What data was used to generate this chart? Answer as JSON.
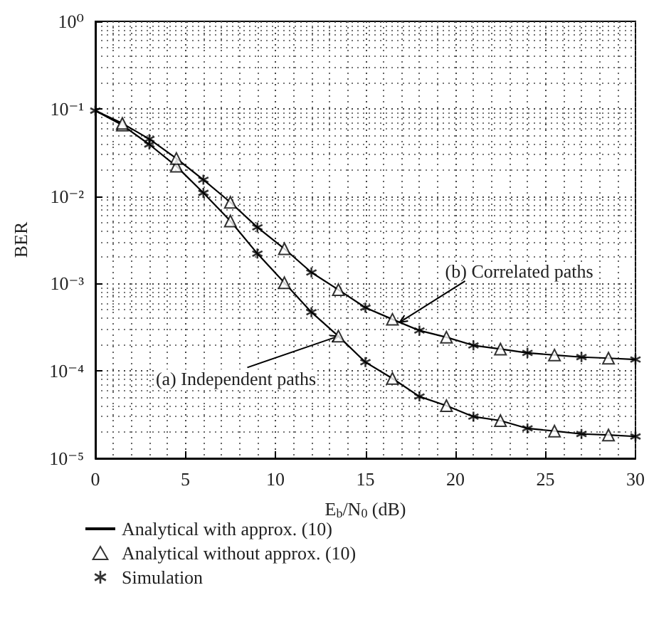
{
  "chart_data": {
    "type": "line",
    "xlabel": "E$_{b}$/N$_{0}$ (dB)",
    "ylabel": "BER",
    "log": "y",
    "grid": true,
    "legend": "bottom",
    "xlim": [
      0,
      30
    ],
    "xticks": [
      0,
      5,
      10,
      15,
      20,
      25,
      30
    ],
    "ylim": [
      1e-05,
      1
    ],
    "yticks": [
      {
        "value": 1e-05,
        "label": "10⁻⁵"
      },
      {
        "value": 0.0001,
        "label": "10⁻⁴"
      },
      {
        "value": 0.001,
        "label": "10⁻³"
      },
      {
        "value": 0.01,
        "label": "10⁻²"
      },
      {
        "value": 0.1,
        "label": "10⁻¹"
      },
      {
        "value": 1,
        "label": "10⁰"
      }
    ],
    "series": [
      {
        "name": "Analytical with approx. (10)",
        "color": "#000000",
        "marker": "none",
        "line_style": "solid",
        "x": [
          0,
          1.5,
          3,
          4.5,
          6,
          7.5,
          9,
          10.5,
          12,
          13.5,
          15,
          16.5,
          18,
          19.5,
          21,
          22.5,
          24,
          25.5,
          27,
          28.5,
          30
        ],
        "values": [
          0.095,
          0.065,
          0.039,
          0.022,
          0.0109,
          0.0052,
          0.0022,
          0.00102,
          0.00047,
          0.00025,
          0.000126,
          8.2e-05,
          5.1e-05,
          4e-05,
          3e-05,
          2.7e-05,
          2.2e-05,
          2.05e-05,
          1.9e-05,
          1.85e-05,
          1.78e-05
        ]
      },
      {
        "color": "#000000",
        "marker": "none",
        "line_style": "solid",
        "x": [
          0,
          1.5,
          3,
          4.5,
          6,
          7.5,
          9,
          10.5,
          12,
          13.5,
          15,
          16.5,
          18,
          19.5,
          21,
          22.5,
          24,
          25.5,
          27,
          28.5,
          30
        ],
        "values": [
          0.095,
          0.068,
          0.045,
          0.027,
          0.0154,
          0.0085,
          0.0044,
          0.0025,
          0.00134,
          0.00085,
          0.00053,
          0.00039,
          0.00029,
          0.000243,
          0.000196,
          0.000178,
          0.000161,
          0.000152,
          0.000144,
          0.00014,
          0.000135
        ]
      },
      {
        "name": "Analytical without approx. (10)",
        "type": "scatter",
        "color": "#000000",
        "marker": "triangle",
        "x": [
          1.5,
          4.5,
          7.5,
          10.5,
          13.5,
          16.5,
          19.5,
          22.5,
          25.5,
          28.5,
          1.5,
          4.5,
          7.5,
          10.5,
          13.5,
          16.5,
          19.5,
          22.5,
          25.5,
          28.5
        ],
        "values": [
          0.065,
          0.022,
          0.0052,
          0.00102,
          0.00025,
          8.2e-05,
          4e-05,
          2.7e-05,
          2.05e-05,
          1.85e-05,
          0.068,
          0.027,
          0.0085,
          0.0025,
          0.00085,
          0.00039,
          0.000243,
          0.000178,
          0.000152,
          0.00014
        ]
      },
      {
        "name": "Simulation",
        "type": "scatter",
        "color": "#000000",
        "marker": "cross",
        "x": [
          0,
          3,
          6,
          9,
          12,
          15,
          18,
          21,
          24,
          27,
          30,
          3,
          6,
          9,
          12,
          15,
          18,
          21,
          24,
          27,
          30
        ],
        "values": [
          0.095,
          0.039,
          0.0109,
          0.0022,
          0.00047,
          0.000126,
          5.1e-05,
          3e-05,
          2.2e-05,
          1.9e-05,
          1.78e-05,
          0.045,
          0.0154,
          0.0044,
          0.00134,
          0.00053,
          0.00029,
          0.000196,
          0.000161,
          0.000144,
          0.000135
        ]
      }
    ],
    "annotations": [
      {
        "text": "(a) Independent paths",
        "x": 13.5,
        "y": 0.00025
      },
      {
        "text": "(b) Correlated paths",
        "x": 16.9,
        "y": 0.00036
      }
    ]
  }
}
